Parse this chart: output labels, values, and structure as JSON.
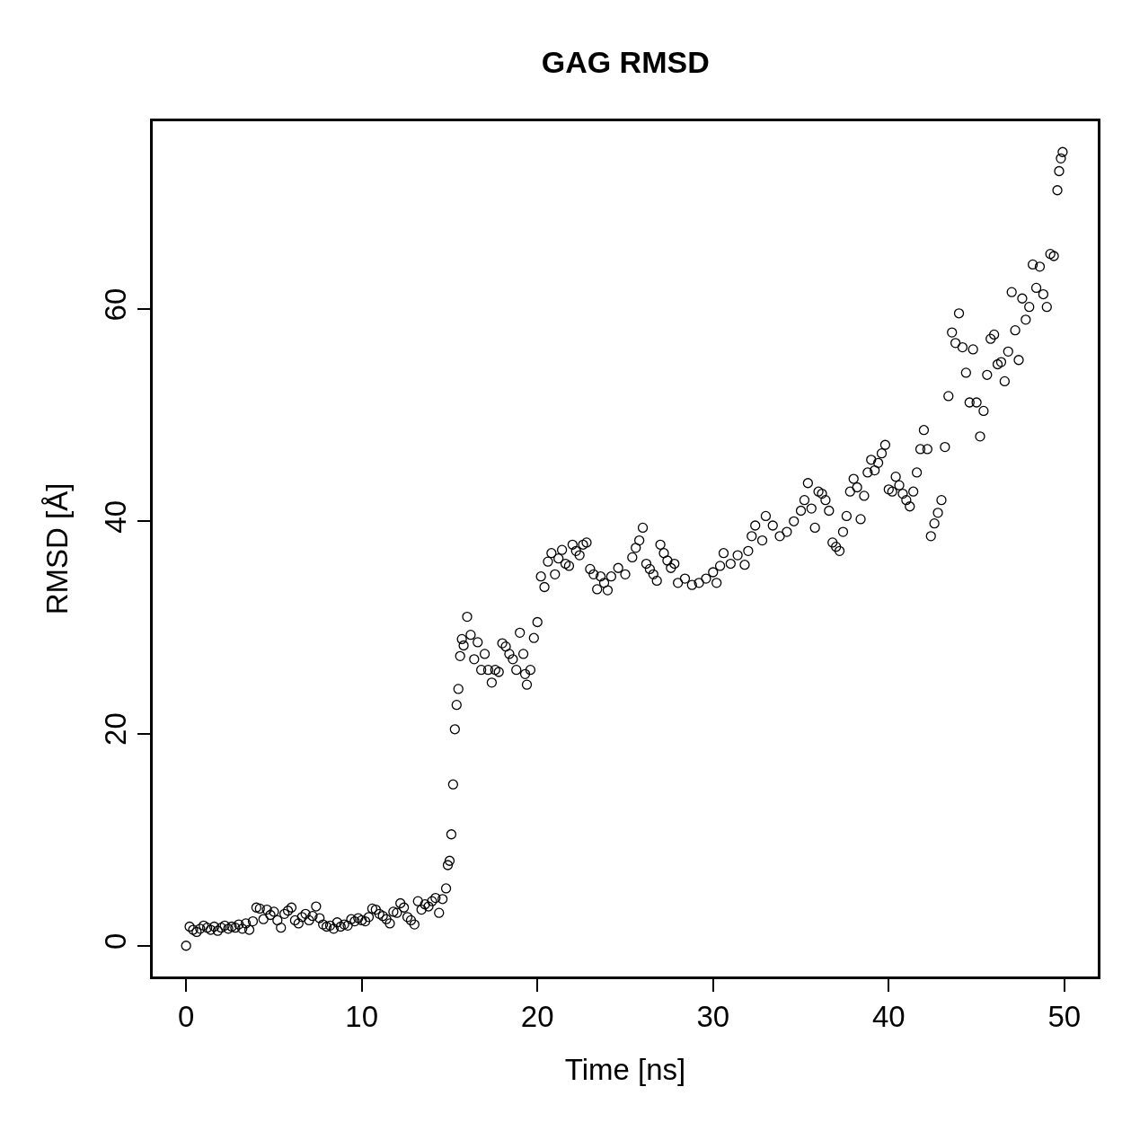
{
  "chart_data": {
    "type": "scatter",
    "title": "GAG RMSD",
    "xlabel": "Time [ns]",
    "ylabel": "RMSD [Å]",
    "xlim": [
      -1.9,
      51.9
    ],
    "ylim": [
      -2.9,
      77.7
    ],
    "xticks": [
      0,
      10,
      20,
      30,
      40,
      50
    ],
    "yticks": [
      0,
      20,
      40,
      60
    ],
    "grid": false,
    "marker": "circle",
    "series": [
      {
        "color": "#000000",
        "x": [
          0,
          0.2,
          0.4,
          0.6,
          0.8,
          1.0,
          1.2,
          1.4,
          1.6,
          1.8,
          2.0,
          2.2,
          2.4,
          2.6,
          2.8,
          3.0,
          3.2,
          3.4,
          3.6,
          3.8,
          4.0,
          4.2,
          4.4,
          4.6,
          4.8,
          5.0,
          5.2,
          5.4,
          5.6,
          5.8,
          6.0,
          6.2,
          6.4,
          6.6,
          6.8,
          7.0,
          7.2,
          7.4,
          7.6,
          7.8,
          8.0,
          8.2,
          8.4,
          8.6,
          8.8,
          9.0,
          9.2,
          9.4,
          9.6,
          9.8,
          10.0,
          10.2,
          10.4,
          10.6,
          10.8,
          11.0,
          11.2,
          11.4,
          11.6,
          11.8,
          12.0,
          12.2,
          12.4,
          12.6,
          12.8,
          13.0,
          13.2,
          13.4,
          13.6,
          13.8,
          14.0,
          14.2,
          14.4,
          14.6,
          14.8,
          14.9,
          15.0,
          15.1,
          15.2,
          15.3,
          15.4,
          15.5,
          15.6,
          15.7,
          15.8,
          16.0,
          16.2,
          16.4,
          16.6,
          16.8,
          17.0,
          17.2,
          17.4,
          17.6,
          17.8,
          18.0,
          18.2,
          18.4,
          18.6,
          18.8,
          19.0,
          19.2,
          19.3,
          19.4,
          19.6,
          19.8,
          20.0,
          20.2,
          20.4,
          20.6,
          20.8,
          21.0,
          21.2,
          21.4,
          21.6,
          21.8,
          22.0,
          22.2,
          22.4,
          22.6,
          22.8,
          23.0,
          23.2,
          23.4,
          23.6,
          23.8,
          24.0,
          24.2,
          24.6,
          25.0,
          25.4,
          25.6,
          25.8,
          26.0,
          26.2,
          26.4,
          26.6,
          26.8,
          27.0,
          27.2,
          27.4,
          27.6,
          27.8,
          28.0,
          28.4,
          28.8,
          29.2,
          29.6,
          30.0,
          30.2,
          30.4,
          30.6,
          31.0,
          31.4,
          31.8,
          32.0,
          32.2,
          32.4,
          32.8,
          33.0,
          33.4,
          33.8,
          34.2,
          34.6,
          35.0,
          35.2,
          35.4,
          35.6,
          35.8,
          36.0,
          36.2,
          36.4,
          36.6,
          36.8,
          37.0,
          37.2,
          37.4,
          37.6,
          37.8,
          38.0,
          38.2,
          38.4,
          38.6,
          38.8,
          39.0,
          39.2,
          39.4,
          39.6,
          39.8,
          40.0,
          40.2,
          40.4,
          40.6,
          40.8,
          41.0,
          41.2,
          41.4,
          41.6,
          41.8,
          42.0,
          42.2,
          42.4,
          42.6,
          42.8,
          43.0,
          43.2,
          43.4,
          43.6,
          43.8,
          44.0,
          44.2,
          44.4,
          44.6,
          44.8,
          45.0,
          45.2,
          45.4,
          45.6,
          45.8,
          46.0,
          46.2,
          46.4,
          46.6,
          46.8,
          47.0,
          47.2,
          47.4,
          47.6,
          47.8,
          48.0,
          48.2,
          48.4,
          48.6,
          48.8,
          49.0,
          49.2,
          49.4,
          49.6,
          49.7,
          49.8,
          49.9
        ],
        "values": [
          0,
          1.8,
          1.5,
          1.3,
          1.6,
          1.9,
          1.7,
          1.5,
          1.8,
          1.4,
          1.7,
          1.9,
          1.6,
          1.8,
          1.7,
          2.0,
          1.6,
          2.1,
          1.5,
          2.3,
          3.6,
          3.5,
          2.5,
          3.4,
          2.9,
          3.2,
          2.4,
          1.7,
          3.0,
          3.3,
          3.6,
          2.4,
          2.1,
          2.7,
          3.0,
          2.4,
          2.8,
          3.7,
          2.6,
          2.0,
          1.8,
          1.9,
          1.6,
          2.2,
          1.8,
          2.0,
          1.9,
          2.5,
          2.3,
          2.6,
          2.4,
          2.3,
          2.7,
          3.5,
          3.4,
          3.0,
          2.8,
          2.5,
          2.1,
          3.2,
          3.1,
          4.0,
          3.6,
          2.7,
          2.4,
          2.0,
          4.2,
          3.4,
          3.9,
          3.7,
          4.2,
          4.5,
          3.1,
          4.4,
          5.4,
          7.6,
          8.0,
          10.5,
          15.2,
          20.4,
          22.7,
          24.2,
          27.3,
          28.9,
          28.3,
          31.0,
          29.3,
          27.0,
          28.6,
          26.0,
          27.5,
          26.0,
          24.8,
          26.0,
          25.8,
          28.5,
          28.2,
          27.5,
          27.0,
          26.0,
          29.5,
          27.5,
          25.6,
          24.6,
          26.0,
          29.0,
          30.5,
          34.8,
          33.8,
          36.2,
          37.0,
          35.0,
          36.5,
          37.3,
          36.0,
          35.8,
          37.8,
          37.2,
          36.8,
          37.8,
          38.0,
          35.5,
          35.0,
          33.6,
          34.8,
          34.2,
          33.5,
          34.8,
          35.6,
          35.0,
          36.6,
          37.5,
          38.2,
          39.4,
          36.0,
          35.5,
          35.0,
          34.4,
          37.8,
          37.0,
          36.3,
          35.6,
          36.0,
          34.2,
          34.6,
          34.0,
          34.2,
          34.6,
          35.2,
          34.2,
          35.8,
          37.0,
          36.0,
          36.8,
          35.9,
          37.2,
          38.6,
          39.6,
          38.2,
          40.5,
          39.6,
          38.6,
          39.0,
          40.0,
          41.0,
          42.0,
          43.6,
          41.2,
          39.4,
          42.8,
          42.6,
          42.0,
          41.0,
          38.0,
          37.6,
          37.2,
          39.0,
          40.5,
          42.8,
          44.0,
          43.2,
          40.2,
          42.4,
          44.6,
          45.8,
          44.8,
          45.5,
          46.4,
          47.2,
          43.0,
          42.8,
          44.2,
          43.4,
          42.6,
          42.0,
          41.4,
          42.8,
          44.6,
          46.8,
          48.6,
          46.8,
          38.6,
          39.8,
          40.8,
          42.0,
          47.0,
          51.8,
          57.8,
          56.8,
          59.6,
          56.4,
          54.0,
          51.2,
          56.2,
          51.2,
          48.0,
          50.4,
          53.8,
          57.2,
          57.6,
          54.8,
          55.0,
          53.2,
          56.0,
          61.6,
          58.0,
          55.2,
          61.0,
          59.0,
          60.2,
          64.2,
          62.0,
          64.0,
          61.4,
          60.2,
          65.2,
          65.0,
          71.2,
          73.0,
          74.2,
          74.8
        ]
      }
    ]
  }
}
